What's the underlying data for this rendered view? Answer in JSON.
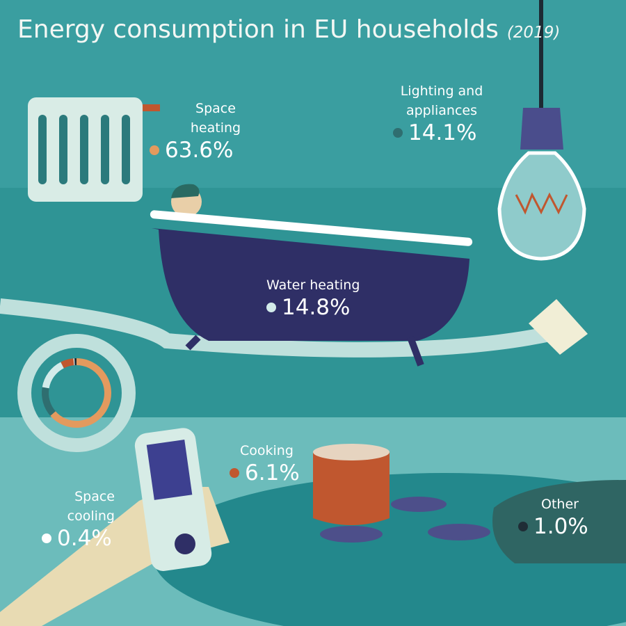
{
  "chart_data": {
    "type": "pie",
    "title": "Energy consumption in EU households",
    "subtitle": "(2019)",
    "categories": [
      "Space heating",
      "Lighting and appliances",
      "Water heating",
      "Cooking",
      "Space cooling",
      "Other"
    ],
    "values": [
      63.6,
      14.1,
      14.8,
      6.1,
      0.4,
      1.0
    ],
    "value_labels": [
      "63.6%",
      "14.1%",
      "14.8%",
      "6.1%",
      "0.4%",
      "1.0%"
    ],
    "colors": [
      "#e39a5e",
      "#2f6e70",
      "#d3ebea",
      "#c0572f",
      "#ffffff",
      "#1f2d36"
    ]
  }
}
